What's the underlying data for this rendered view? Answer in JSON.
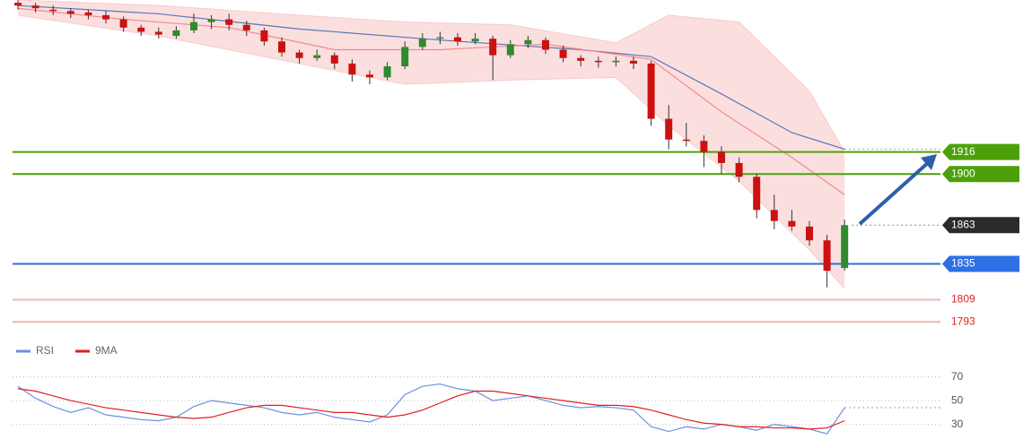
{
  "chart_data": [
    {
      "type": "candlestick",
      "categories": [
        null,
        null,
        null,
        null,
        null,
        null,
        null,
        null,
        null,
        null,
        null,
        null,
        null,
        null,
        null,
        null,
        null,
        null,
        null,
        null,
        null,
        null,
        null,
        null,
        null,
        null,
        null,
        null,
        null,
        null,
        null,
        null,
        null,
        null,
        null,
        null,
        null,
        null,
        null,
        null,
        null,
        null,
        null,
        null,
        null,
        null,
        null,
        null
      ],
      "open": [
        2024,
        2022,
        2019,
        2018,
        2017,
        2015,
        2012,
        2006,
        2003,
        2000,
        2004,
        2010,
        2012,
        2008,
        2004,
        1996,
        1988,
        1984,
        1986,
        1980,
        1972,
        1970,
        1978,
        1992,
        1998,
        1999,
        1996,
        1998,
        1986,
        1994,
        1997,
        1990,
        1984,
        1982,
        1981,
        1982,
        1980,
        1940,
        1925,
        1924,
        1916,
        1908,
        1898,
        1874,
        1866,
        1862,
        1852,
        1832
      ],
      "high": [
        2026,
        2024,
        2022,
        2020,
        2019,
        2018,
        2014,
        2008,
        2006,
        2007,
        2016,
        2015,
        2016,
        2011,
        2006,
        1999,
        1990,
        1990,
        1988,
        1983,
        1975,
        1981,
        1996,
        2002,
        2003,
        2002,
        2002,
        2000,
        1997,
        2000,
        1999,
        1993,
        1986,
        1985,
        1985,
        1985,
        1982,
        1950,
        1937,
        1928,
        1920,
        1912,
        1900,
        1885,
        1874,
        1866,
        1856,
        1867
      ],
      "low": [
        2019,
        2017,
        2015,
        2013,
        2012,
        2009,
        2003,
        2000,
        1998,
        1998,
        2002,
        2005,
        2004,
        2000,
        1993,
        1985,
        1980,
        1982,
        1976,
        1967,
        1965,
        1968,
        1976,
        1990,
        1994,
        1993,
        1994,
        1968,
        1984,
        1991,
        1987,
        1981,
        1978,
        1977,
        1978,
        1976,
        1935,
        1918,
        1920,
        1905,
        1900,
        1894,
        1868,
        1860,
        1859,
        1848,
        1818,
        1830
      ],
      "close": [
        2022,
        2020,
        2018,
        2016,
        2015,
        2012,
        2006,
        2003,
        2001,
        2004,
        2010,
        2012,
        2008,
        2004,
        1996,
        1988,
        1984,
        1986,
        1980,
        1972,
        1970,
        1978,
        1992,
        1998,
        1999,
        1996,
        1998,
        1986,
        1994,
        1997,
        1990,
        1984,
        1982,
        1981,
        1982,
        1980,
        1940,
        1925,
        1924,
        1916,
        1908,
        1898,
        1874,
        1866,
        1862,
        1852,
        1830,
        1863
      ],
      "up_color": "#2e8b2e",
      "down_color": "#cc1111",
      "ylim": [
        1786,
        2026
      ],
      "band": {
        "color": "#f9c9c9",
        "x": [
          0,
          8,
          16,
          22,
          28,
          34,
          37,
          41,
          45,
          47
        ],
        "upper": [
          2026,
          2022,
          2015,
          2010,
          2008,
          1995,
          2015,
          2010,
          1960,
          1916
        ],
        "lower": [
          2015,
          2000,
          1980,
          1965,
          1968,
          1970,
          1935,
          1895,
          1845,
          1817
        ]
      },
      "overlays": [
        {
          "color": "#5a78b8",
          "x": [
            0,
            8,
            16,
            24,
            32,
            36,
            40,
            44,
            47
          ],
          "values": [
            2022,
            2016,
            2005,
            1997,
            1990,
            1985,
            1958,
            1930,
            1918
          ]
        },
        {
          "color": "#f08a8a",
          "x": [
            0,
            6,
            12,
            18,
            24,
            30,
            36,
            40,
            44,
            47
          ],
          "values": [
            2020,
            2012,
            2006,
            1990,
            1990,
            1994,
            1983,
            1945,
            1912,
            1885
          ]
        }
      ],
      "levels": [
        {
          "value": 1916,
          "color": "#4ca10a",
          "label_bg": "#4ca10a",
          "text_color": "#ffffff"
        },
        {
          "value": 1900,
          "color": "#4ca10a",
          "label_bg": "#4ca10a",
          "text_color": "#ffffff"
        },
        {
          "value": 1863,
          "color": "#888888",
          "label_bg": "#2b2b2b",
          "text_color": "#ffffff",
          "dotted": true
        },
        {
          "value": 1835,
          "color": "#2f6fd6",
          "label_bg": "#2f6fe6",
          "text_color": "#ffffff"
        },
        {
          "value": 1809,
          "color": "#f4b4b4",
          "text_color": "#e02020"
        },
        {
          "value": 1793,
          "color": "#f4b4b4",
          "text_color": "#e02020"
        }
      ]
    },
    {
      "type": "line",
      "categories": [
        null,
        null,
        null,
        null,
        null,
        null,
        null,
        null,
        null,
        null,
        null,
        null,
        null,
        null,
        null,
        null,
        null,
        null,
        null,
        null,
        null,
        null,
        null,
        null,
        null,
        null,
        null,
        null,
        null,
        null,
        null,
        null,
        null,
        null,
        null,
        null,
        null,
        null,
        null,
        null,
        null,
        null,
        null,
        null,
        null,
        null,
        null,
        null
      ],
      "series": [
        {
          "name": "RSI",
          "color": "#6b8fe0",
          "values": [
            62,
            52,
            45,
            40,
            44,
            38,
            36,
            34,
            33,
            36,
            45,
            50,
            48,
            46,
            44,
            40,
            38,
            40,
            36,
            34,
            32,
            38,
            55,
            62,
            64,
            60,
            58,
            50,
            52,
            54,
            50,
            46,
            44,
            45,
            44,
            42,
            28,
            24,
            28,
            26,
            30,
            28,
            25,
            30,
            28,
            26,
            22,
            44
          ]
        },
        {
          "name": "9MA",
          "color": "#e02020",
          "values": [
            60,
            58,
            54,
            50,
            47,
            44,
            42,
            40,
            38,
            36,
            35,
            36,
            40,
            44,
            46,
            46,
            44,
            42,
            40,
            40,
            38,
            36,
            38,
            42,
            48,
            54,
            58,
            58,
            56,
            54,
            52,
            50,
            48,
            46,
            46,
            45,
            42,
            38,
            34,
            31,
            30,
            28,
            28,
            27,
            27,
            26,
            27,
            33
          ]
        }
      ],
      "ylim": [
        18,
        78
      ],
      "yticks": [
        30,
        50,
        70
      ],
      "grid": true
    }
  ]
}
